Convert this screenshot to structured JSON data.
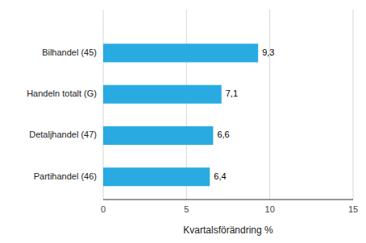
{
  "chart_data": {
    "type": "bar",
    "orientation": "horizontal",
    "categories": [
      "Partihandel (46)",
      "Detaljhandel (47)",
      "Handeln totalt (G)",
      "Bilhandel (45)"
    ],
    "values": [
      6.4,
      6.6,
      7.1,
      9.3
    ],
    "value_labels": [
      "6,4",
      "6,6",
      "7,1",
      "9,3"
    ],
    "data_labels": true,
    "color": "#29abe2",
    "xlabel": "Kvartalsförändring %",
    "xlim": [
      0,
      15
    ],
    "xticks": [
      0,
      5,
      10,
      15
    ],
    "grid": true
  }
}
